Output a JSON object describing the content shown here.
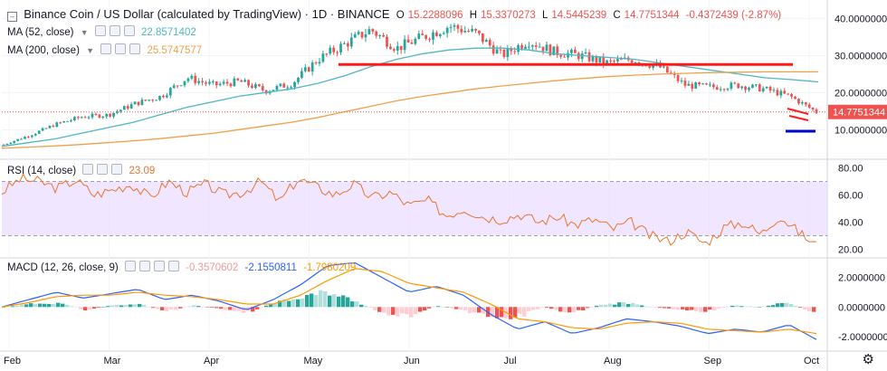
{
  "header": {
    "symbol_title": "Binance Coin / US Dollar (calculated by TradingView) · 1D · BINANCE",
    "ohlc": [
      {
        "label": "O",
        "value": "15.2288096"
      },
      {
        "label": "H",
        "value": "15.3370273"
      },
      {
        "label": "L",
        "value": "14.5445239"
      },
      {
        "label": "C",
        "value": "14.7751344"
      }
    ],
    "change": "-0.4372439 (-2.87%)"
  },
  "indicators": {
    "ma52": {
      "label": "MA (52, close)",
      "value": "22.8571402",
      "color": "#4fb6c6"
    },
    "ma200": {
      "label": "MA (200, close)",
      "value": "25.5747577",
      "color": "#f0a04b"
    },
    "rsi": {
      "label": "RSI (14, close)",
      "value": "23.09",
      "color": "#e8772e"
    },
    "macd": {
      "label": "MACD (12, 26, close, 9)",
      "values": [
        "-0.3570602",
        "-2.1550811",
        "-1.7980209"
      ],
      "colors": [
        "#ef9a9a",
        "#2962ff",
        "#ff9800"
      ]
    }
  },
  "price_axis": [
    "40.0000000",
    "30.0000000",
    "20.0000000",
    "10.0000000"
  ],
  "last_price_tag": "14.7751344",
  "rsi_axis": [
    "80.00",
    "60.00",
    "40.00",
    "20.00"
  ],
  "macd_axis": [
    "2.0000000",
    "0.0000000",
    "-2.0000000"
  ],
  "time_axis": [
    "Feb",
    "Mar",
    "Apr",
    "May",
    "Jun",
    "Jul",
    "Aug",
    "Sep",
    "Oct"
  ],
  "colors": {
    "up": "#26a69a",
    "down": "#ef5350",
    "trendline": "#ff1a1a",
    "target": "#0000cc",
    "rsi_band": "#e9dcff"
  },
  "chart_data": [
    {
      "type": "candlestick",
      "title": "Binance Coin / US Dollar (calculated by TradingView) · 1D · BINANCE",
      "x": [
        "Feb",
        "Mar",
        "Apr",
        "May",
        "Jun",
        "Jul",
        "Aug",
        "Sep",
        "Oct"
      ],
      "close_path": [
        6.0,
        8.5,
        11.5,
        13.5,
        14.0,
        17.0,
        19.0,
        24.0,
        22.0,
        23.0,
        20.5,
        22.5,
        29.0,
        33.0,
        37.0,
        32.0,
        35.0,
        38.0,
        36.0,
        30.0,
        34.0,
        31.0,
        30.0,
        28.0,
        29.0,
        27.0,
        22.0,
        21.5,
        22.0,
        21.0,
        19.0,
        14.8
      ],
      "overlays": [
        {
          "name": "MA (52, close)",
          "values": [
            5.5,
            6.5,
            7.5,
            9.0,
            10.5,
            12.0,
            14.0,
            16.0,
            17.5,
            19.0,
            20.0,
            21.0,
            22.5,
            24.5,
            27.0,
            29.0,
            30.5,
            31.5,
            32.0,
            32.0,
            31.5,
            30.5,
            30.0,
            29.5,
            29.0,
            28.0,
            27.0,
            26.0,
            25.0,
            24.0,
            23.5,
            22.9
          ]
        },
        {
          "name": "MA (200, close)",
          "values": [
            5.0,
            5.3,
            5.6,
            6.0,
            6.5,
            7.0,
            7.6,
            8.3,
            9.0,
            10.0,
            11.0,
            12.0,
            13.3,
            14.8,
            16.3,
            17.8,
            19.0,
            20.0,
            21.0,
            21.8,
            22.5,
            23.2,
            23.8,
            24.3,
            24.7,
            25.0,
            25.2,
            25.4,
            25.5,
            25.6,
            25.6,
            25.6
          ]
        }
      ],
      "ylim": [
        3,
        44
      ]
    },
    {
      "type": "line",
      "title": "RSI (14, close)",
      "values": [
        62,
        72,
        70,
        65,
        71,
        60,
        64,
        68,
        58,
        70,
        62,
        68,
        60,
        62,
        70,
        55,
        72,
        66,
        60,
        68,
        58,
        62,
        52,
        56,
        45,
        50,
        44,
        42,
        46,
        40,
        44,
        38,
        42,
        35,
        40,
        30,
        26,
        33,
        24,
        36,
        40,
        31,
        45,
        33,
        23
      ],
      "band": [
        30,
        70
      ],
      "ylim": [
        15,
        85
      ]
    },
    {
      "type": "line",
      "title": "MACD (12, 26, close, 9)",
      "series": [
        {
          "name": "MACD",
          "values": [
            0.0,
            0.5,
            1.0,
            0.6,
            0.9,
            1.2,
            0.5,
            0.8,
            0.4,
            -0.2,
            0.5,
            1.5,
            2.8,
            3.0,
            2.0,
            1.0,
            1.4,
            0.8,
            -0.5,
            -1.5,
            -1.0,
            -1.8,
            -1.4,
            -0.8,
            -1.0,
            -1.3,
            -1.8,
            -1.5,
            -1.7,
            -1.2,
            -2.2
          ]
        },
        {
          "name": "Signal",
          "values": [
            0.0,
            0.3,
            0.7,
            0.8,
            0.8,
            1.0,
            0.8,
            0.7,
            0.5,
            0.2,
            0.2,
            0.8,
            1.8,
            2.6,
            2.4,
            1.6,
            1.3,
            1.0,
            0.2,
            -0.8,
            -1.0,
            -1.4,
            -1.5,
            -1.1,
            -1.0,
            -1.1,
            -1.5,
            -1.6,
            -1.7,
            -1.5,
            -1.8
          ]
        }
      ],
      "histogram": [
        0.0,
        0.2,
        0.3,
        -0.2,
        0.1,
        0.2,
        -0.3,
        0.1,
        -0.1,
        -0.4,
        0.3,
        0.7,
        1.0,
        0.4,
        -0.4,
        -0.6,
        0.1,
        -0.2,
        -0.7,
        -0.7,
        0.0,
        -0.4,
        0.1,
        0.3,
        0.0,
        -0.2,
        -0.3,
        0.1,
        0.0,
        0.3,
        -0.4
      ],
      "ylim": [
        -2.8,
        3.2
      ]
    }
  ]
}
